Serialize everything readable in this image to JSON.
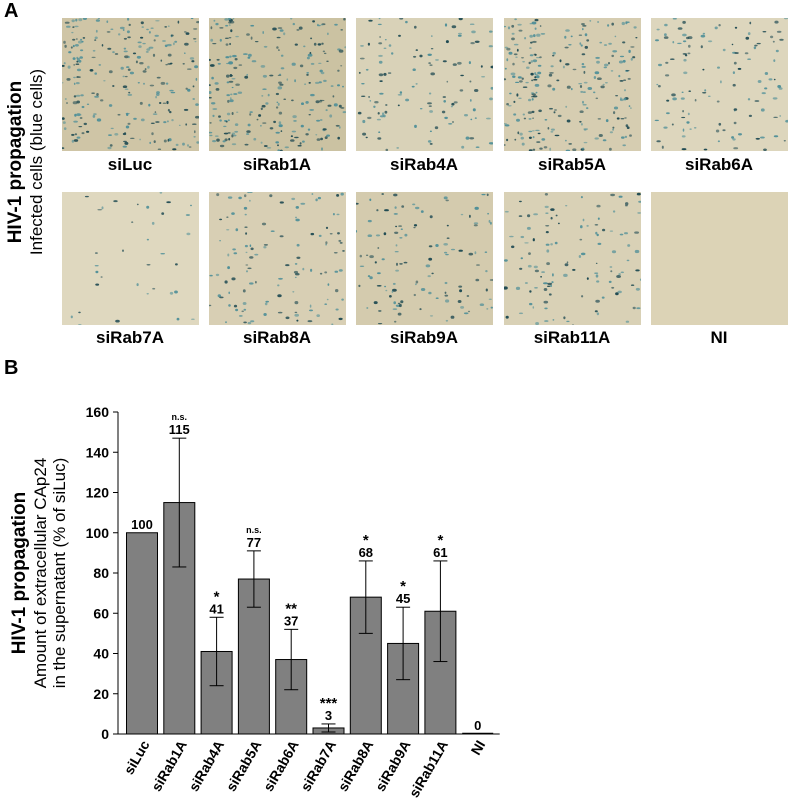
{
  "panel_a": {
    "letter": "A",
    "title_bold": "HIV-1 propagation",
    "title_sub": "Infected cells (blue cells)",
    "images": [
      {
        "label": "siLuc",
        "density": "high",
        "color": "#cfc5a6"
      },
      {
        "label": "siRab1A",
        "density": "high",
        "color": "#cbc2a2"
      },
      {
        "label": "siRab4A",
        "density": "medium",
        "color": "#d9d2b8"
      },
      {
        "label": "siRab5A",
        "density": "high",
        "color": "#d6cdb1"
      },
      {
        "label": "siRab6A",
        "density": "medium",
        "color": "#ddd6bd"
      },
      {
        "label": "siRab7A",
        "density": "low",
        "color": "#dfd8bf"
      },
      {
        "label": "siRab8A",
        "density": "medium",
        "color": "#d8cfb4"
      },
      {
        "label": "siRab9A",
        "density": "medium",
        "color": "#d4cbae"
      },
      {
        "label": "siRab11A",
        "density": "medium",
        "color": "#d9d1b6"
      },
      {
        "label": "NI",
        "density": "none",
        "color": "#dcd3b6"
      }
    ]
  },
  "panel_b": {
    "letter": "B",
    "title_bold": "HIV-1 propagation",
    "title_sub1": "Amount of extracellular CAp24",
    "title_sub2": "in the supernatant (% of siLuc)"
  },
  "chart_data": {
    "type": "bar",
    "categories": [
      "siLuc",
      "siRab1A",
      "siRab4A",
      "siRab5A",
      "siRab6A",
      "siRab7A",
      "siRab8A",
      "siRab9A",
      "siRab11A",
      "NI"
    ],
    "values": [
      100,
      115,
      41,
      77,
      37,
      3,
      68,
      45,
      61,
      0
    ],
    "value_labels": [
      "100",
      "115",
      "41",
      "77",
      "37",
      "3",
      "68",
      "45",
      "61",
      "0"
    ],
    "error": [
      0,
      32,
      17,
      14,
      15,
      2,
      18,
      18,
      25,
      0
    ],
    "significance": [
      "",
      "n.s.",
      "*",
      "n.s.",
      "**",
      "***",
      "*",
      "*",
      "*",
      ""
    ],
    "ylim": [
      0,
      160
    ],
    "yticks": [
      0,
      20,
      40,
      60,
      80,
      100,
      120,
      140,
      160
    ],
    "bar_color": "#808080",
    "grid": false
  }
}
